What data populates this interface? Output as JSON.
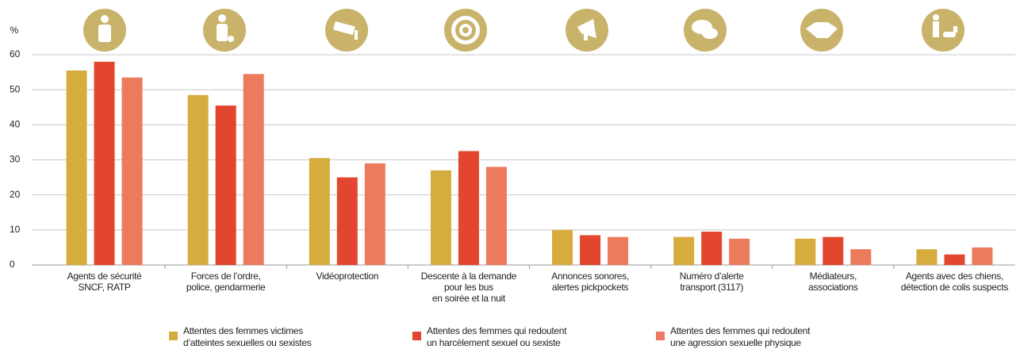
{
  "chart_data": {
    "type": "bar",
    "y_label": "%",
    "categories": [
      "Agents de sécurité\nSNCF, RATP",
      "Forces de l’ordre,\npolice, gendarmerie",
      "Vidéoprotection",
      "Descente à la demande\npour les bus\nen soirée et la nuit",
      "Annonces sonores,\nalertes pickpockets",
      "Numéro d’alerte\ntransport (3117)",
      "Médiateurs,\nassociations",
      "Agents avec des chiens,\ndétection de colis suspects"
    ],
    "series": [
      {
        "name": "Attentes des femmes victimes\nd’atteintes sexuelles ou sexistes",
        "color": "#d6ac3e",
        "values": [
          55.5,
          48.5,
          30.5,
          27,
          10,
          8,
          7.5,
          4.5
        ]
      },
      {
        "name": "Attentes des femmes qui redoutent\nun harcèlement sexuel ou sexiste",
        "color": "#e2462f",
        "values": [
          58,
          45.5,
          25,
          32.5,
          8.5,
          9.5,
          8,
          3
        ]
      },
      {
        "name": "Attentes des femmes qui redoutent\nune agression sexuelle physique",
        "color": "#ec7b5e",
        "values": [
          53.5,
          54.5,
          29,
          28,
          8,
          7.5,
          4.5,
          5
        ]
      }
    ],
    "ylim": [
      0,
      60
    ],
    "yticks": [
      0,
      10,
      20,
      30,
      40,
      50,
      60
    ],
    "grid": true
  }
}
